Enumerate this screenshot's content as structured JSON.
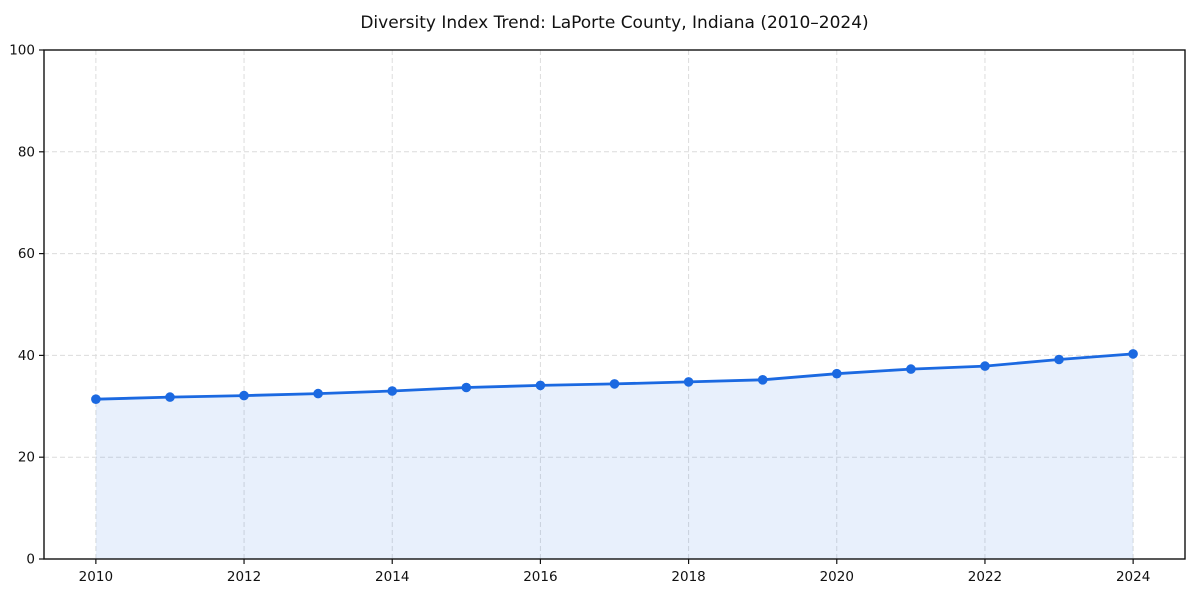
{
  "chart_data": {
    "type": "line",
    "title": "Diversity Index Trend: LaPorte County, Indiana (2010–2024)",
    "series_name": "Diversity Index",
    "x": [
      2010,
      2011,
      2012,
      2013,
      2014,
      2015,
      2016,
      2017,
      2018,
      2019,
      2020,
      2021,
      2022,
      2023,
      2024
    ],
    "values": [
      31.4,
      31.8,
      32.1,
      32.5,
      33.0,
      33.7,
      34.1,
      34.4,
      34.8,
      35.2,
      36.4,
      37.3,
      37.9,
      39.2,
      40.3
    ],
    "xlabel": "",
    "ylabel": "",
    "xlim": [
      2009.3,
      2024.7
    ],
    "ylim": [
      0,
      100
    ],
    "xticks": [
      2010,
      2012,
      2014,
      2016,
      2018,
      2020,
      2022,
      2024
    ],
    "yticks": [
      0,
      20,
      40,
      60,
      80,
      100
    ],
    "grid": true,
    "grid_style": "dashed",
    "legend": "none",
    "line_color": "#1b69e1",
    "fill_color": "#1b69e1",
    "fill_opacity": 0.1,
    "grid_color": "#dcdcdc",
    "frame_color": "#111111",
    "tick_label_color": "#111111",
    "marker": "circle"
  }
}
